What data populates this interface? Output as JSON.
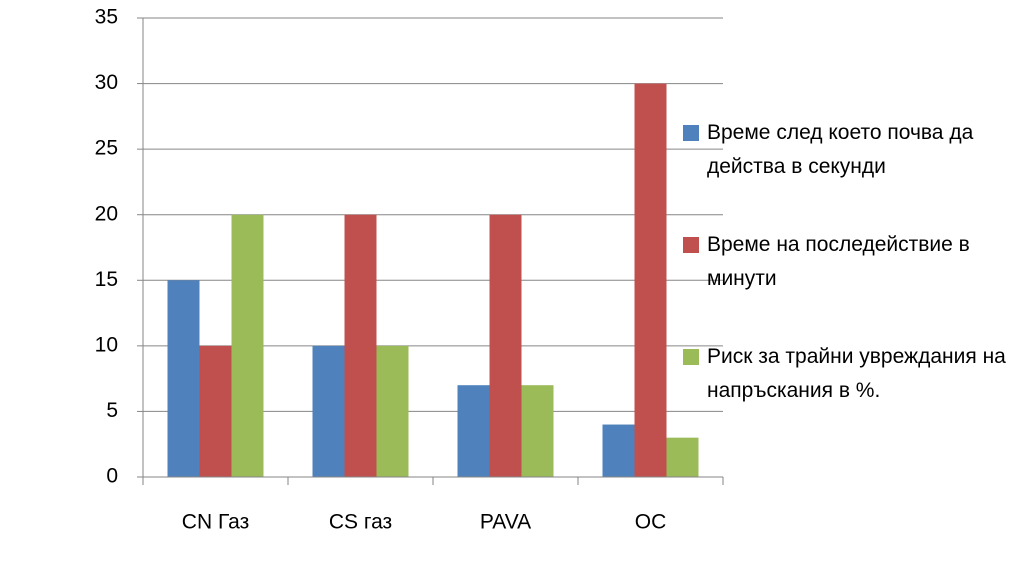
{
  "chart_data": {
    "type": "bar",
    "categories": [
      "CN Газ",
      "CS газ",
      "PAVA",
      "OC"
    ],
    "series": [
      {
        "name": "Време след което почва да действа в секунди",
        "color": "#4f81bd",
        "values": [
          15,
          10,
          7,
          4
        ]
      },
      {
        "name": "Време на последействие в минути",
        "color": "#c0504d",
        "values": [
          10,
          20,
          20,
          30
        ]
      },
      {
        "name": "Риск за трайни увреждания на напръскания в %.",
        "color": "#9bbb59",
        "values": [
          20,
          10,
          7,
          3
        ]
      }
    ],
    "ylim": [
      0,
      35
    ],
    "yticks": [
      0,
      5,
      10,
      15,
      20,
      25,
      30,
      35
    ],
    "grid": true,
    "legend": "right"
  }
}
